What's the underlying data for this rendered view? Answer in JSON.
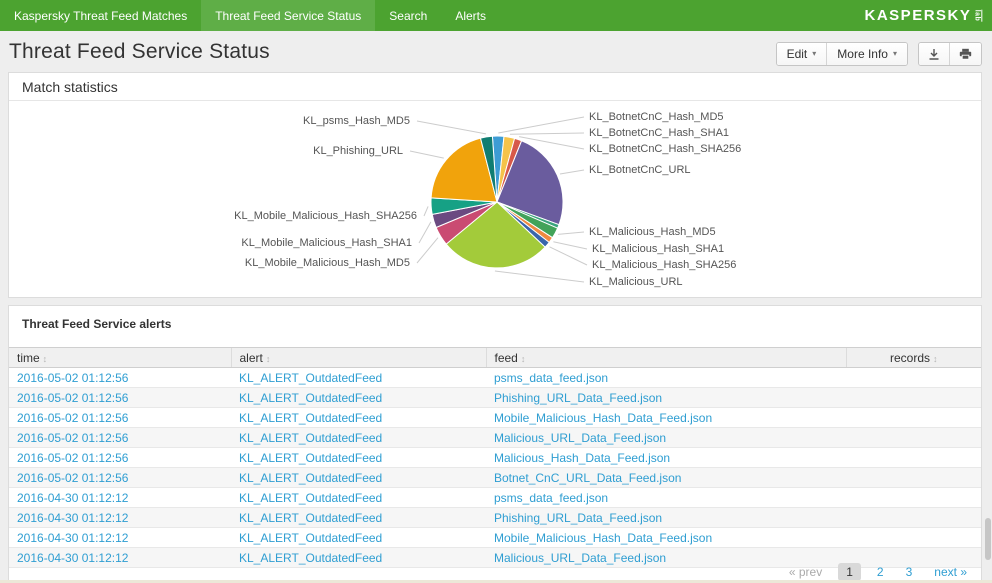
{
  "nav": {
    "items": [
      {
        "label": "Kaspersky Threat Feed Matches",
        "active": false
      },
      {
        "label": "Threat Feed Service Status",
        "active": true
      },
      {
        "label": "Search",
        "active": false
      },
      {
        "label": "Alerts",
        "active": false
      }
    ],
    "brand": "KASPERSKY",
    "brand_sub": "lab"
  },
  "page": {
    "title": "Threat Feed Service Status"
  },
  "toolbar": {
    "edit_label": "Edit",
    "more_info_label": "More Info",
    "download_icon": "download-icon",
    "print_icon": "printer-icon"
  },
  "icons": {
    "chevron_down": "▾",
    "sort": "↕"
  },
  "panels": {
    "match": {
      "title": "Match statistics"
    },
    "alerts": {
      "title": "Threat Feed Service alerts"
    }
  },
  "chart_data": {
    "type": "pie",
    "title": "Match statistics",
    "legend_position": "callout-labels",
    "note": "values are percents estimated from slice angles; unlabeled tiny slice present between KL_BotnetCnC_URL and KL_Malicious_Hash_MD5",
    "start_angle_deg": -4,
    "slices": [
      {
        "label": "KL_BotnetCnC_Hash_MD5",
        "value": 2.8,
        "color": "#3d9cd4"
      },
      {
        "label": "KL_BotnetCnC_Hash_SHA1",
        "value": 2.6,
        "color": "#f5c34a"
      },
      {
        "label": "KL_BotnetCnC_Hash_SHA256",
        "value": 1.8,
        "color": "#d65949"
      },
      {
        "label": "KL_BotnetCnC_URL",
        "value": 24.5,
        "color": "#6a5c9e"
      },
      {
        "label": "",
        "value": 0.9,
        "color": "#3aa47c"
      },
      {
        "label": "KL_Malicious_Hash_MD5",
        "value": 2.6,
        "color": "#42a359"
      },
      {
        "label": "KL_Malicious_Hash_SHA1",
        "value": 1.4,
        "color": "#ef8a41"
      },
      {
        "label": "KL_Malicious_Hash_SHA256",
        "value": 1.5,
        "color": "#3a66ab"
      },
      {
        "label": "KL_Malicious_URL",
        "value": 27.0,
        "color": "#a3cb3a"
      },
      {
        "label": "KL_Mobile_Malicious_Hash_MD5",
        "value": 4.7,
        "color": "#ca4b72"
      },
      {
        "label": "KL_Mobile_Malicious_Hash_SHA1",
        "value": 3.3,
        "color": "#6b4a81"
      },
      {
        "label": "KL_Mobile_Malicious_Hash_SHA256",
        "value": 4.0,
        "color": "#16a185"
      },
      {
        "label": "KL_Phishing_URL",
        "value": 20.0,
        "color": "#f1a30c"
      },
      {
        "label": "KL_psms_Hash_MD5",
        "value": 2.9,
        "color": "#107d71"
      }
    ]
  },
  "table": {
    "columns": [
      "time",
      "alert",
      "feed",
      "records"
    ],
    "rows": [
      {
        "time": "2016-05-02 01:12:56",
        "alert": "KL_ALERT_OutdatedFeed",
        "feed": "psms_data_feed.json",
        "records": ""
      },
      {
        "time": "2016-05-02 01:12:56",
        "alert": "KL_ALERT_OutdatedFeed",
        "feed": "Phishing_URL_Data_Feed.json",
        "records": ""
      },
      {
        "time": "2016-05-02 01:12:56",
        "alert": "KL_ALERT_OutdatedFeed",
        "feed": "Mobile_Malicious_Hash_Data_Feed.json",
        "records": ""
      },
      {
        "time": "2016-05-02 01:12:56",
        "alert": "KL_ALERT_OutdatedFeed",
        "feed": "Malicious_URL_Data_Feed.json",
        "records": ""
      },
      {
        "time": "2016-05-02 01:12:56",
        "alert": "KL_ALERT_OutdatedFeed",
        "feed": "Malicious_Hash_Data_Feed.json",
        "records": ""
      },
      {
        "time": "2016-05-02 01:12:56",
        "alert": "KL_ALERT_OutdatedFeed",
        "feed": "Botnet_CnC_URL_Data_Feed.json",
        "records": ""
      },
      {
        "time": "2016-04-30 01:12:12",
        "alert": "KL_ALERT_OutdatedFeed",
        "feed": "psms_data_feed.json",
        "records": ""
      },
      {
        "time": "2016-04-30 01:12:12",
        "alert": "KL_ALERT_OutdatedFeed",
        "feed": "Phishing_URL_Data_Feed.json",
        "records": ""
      },
      {
        "time": "2016-04-30 01:12:12",
        "alert": "KL_ALERT_OutdatedFeed",
        "feed": "Mobile_Malicious_Hash_Data_Feed.json",
        "records": ""
      },
      {
        "time": "2016-04-30 01:12:12",
        "alert": "KL_ALERT_OutdatedFeed",
        "feed": "Malicious_URL_Data_Feed.json",
        "records": ""
      }
    ]
  },
  "pagination": {
    "prev_label": "« prev",
    "pages": [
      "1",
      "2",
      "3"
    ],
    "current_page": "1",
    "next_label": "next »"
  }
}
